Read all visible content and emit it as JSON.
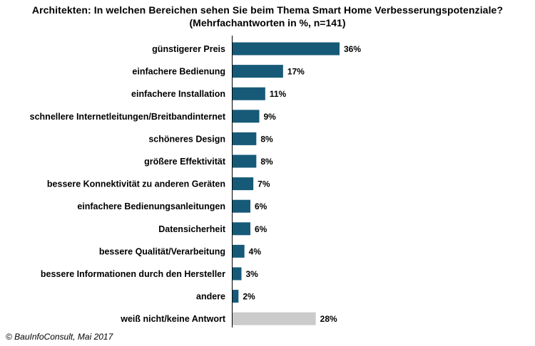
{
  "header": {
    "title": "Architekten: In welchen Bereichen sehen Sie beim Thema Smart Home Verbesserungspotenziale?",
    "subtitle": "(Mehrfachantworten in %, n=141)"
  },
  "footer": {
    "source": "© BauInfoConsult, Mai 2017"
  },
  "colors": {
    "bar": "#165a78",
    "bar_neutral": "#cbcbcb"
  },
  "chart_data": {
    "type": "bar",
    "orientation": "horizontal",
    "title": "Architekten: In welchen Bereichen sehen Sie beim Thema Smart Home Verbesserungspotenziale?",
    "subtitle": "(Mehrfachantworten in %, n=141)",
    "categories": [
      "günstigerer Preis",
      "einfachere Bedienung",
      "einfachere Installation",
      "schnellere Internetleitungen/Breitbandinternet",
      "schöneres Design",
      "größere Effektivität",
      "bessere Konnektivität zu anderen Geräten",
      "einfachere Bedienungsanleitungen",
      "Datensicherheit",
      "bessere Qualität/Verarbeitung",
      "bessere Informationen durch den Hersteller",
      "andere",
      "weiß nicht/keine Antwort"
    ],
    "values": [
      36,
      17,
      11,
      9,
      8,
      8,
      7,
      6,
      6,
      4,
      3,
      2,
      28
    ],
    "value_labels": [
      "36%",
      "17%",
      "11%",
      "9%",
      "8%",
      "8%",
      "7%",
      "6%",
      "6%",
      "4%",
      "3%",
      "2%",
      "28%"
    ],
    "bar_colors": [
      "#165a78",
      "#165a78",
      "#165a78",
      "#165a78",
      "#165a78",
      "#165a78",
      "#165a78",
      "#165a78",
      "#165a78",
      "#165a78",
      "#165a78",
      "#165a78",
      "#cbcbcb"
    ],
    "xlabel": "",
    "ylabel": "",
    "xlim": [
      0,
      36
    ],
    "grid": false,
    "legend": "none"
  }
}
